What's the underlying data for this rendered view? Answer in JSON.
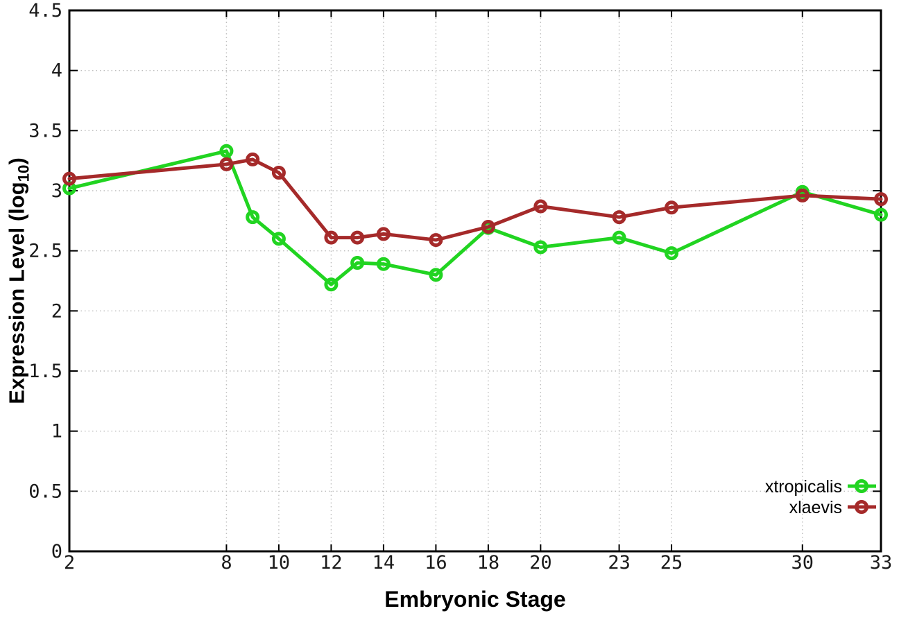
{
  "chart_data": {
    "type": "line",
    "title": "",
    "xlabel": "Embryonic Stage",
    "ylabel": {
      "prefix": "Expression Level (log",
      "sub": "10",
      "suffix": ")"
    },
    "xlim": [
      2,
      33
    ],
    "ylim": [
      0,
      4.5
    ],
    "grid": true,
    "legend_position": "inside-bottom-right",
    "xtick_values": [
      2,
      8,
      10,
      12,
      14,
      16,
      18,
      20,
      23,
      25,
      30,
      33
    ],
    "xtick_labels": [
      "2",
      "8",
      "10",
      "12",
      "14",
      "16",
      "18",
      "20",
      "23",
      "25",
      "30",
      "33"
    ],
    "ytick_values": [
      0,
      0.5,
      1,
      1.5,
      2,
      2.5,
      3,
      3.5,
      4,
      4.5
    ],
    "ytick_labels": [
      "0",
      "0.5",
      "1",
      "1.5",
      "2",
      "2.5",
      "3",
      "3.5",
      "4",
      "4.5"
    ],
    "colors": {
      "xtropicalis": "#21D421",
      "xlaevis": "#A52A2A",
      "grid": "#bdbdbd",
      "border": "#000000",
      "tick_text": "#1a1a1a"
    },
    "marker": "open-circle",
    "x": [
      2,
      8,
      9,
      10,
      12,
      13,
      14,
      16,
      18,
      20,
      23,
      25,
      30,
      33
    ],
    "series": [
      {
        "name": "xtropicalis",
        "color": "#21D421",
        "values": [
          3.02,
          3.33,
          2.78,
          2.6,
          2.22,
          2.4,
          2.39,
          2.3,
          2.69,
          2.53,
          2.61,
          2.48,
          2.99,
          2.8
        ]
      },
      {
        "name": "xlaevis",
        "color": "#A52A2A",
        "values": [
          3.1,
          3.22,
          3.26,
          3.15,
          2.61,
          2.61,
          2.64,
          2.59,
          2.7,
          2.87,
          2.78,
          2.86,
          2.96,
          2.93
        ]
      }
    ]
  }
}
